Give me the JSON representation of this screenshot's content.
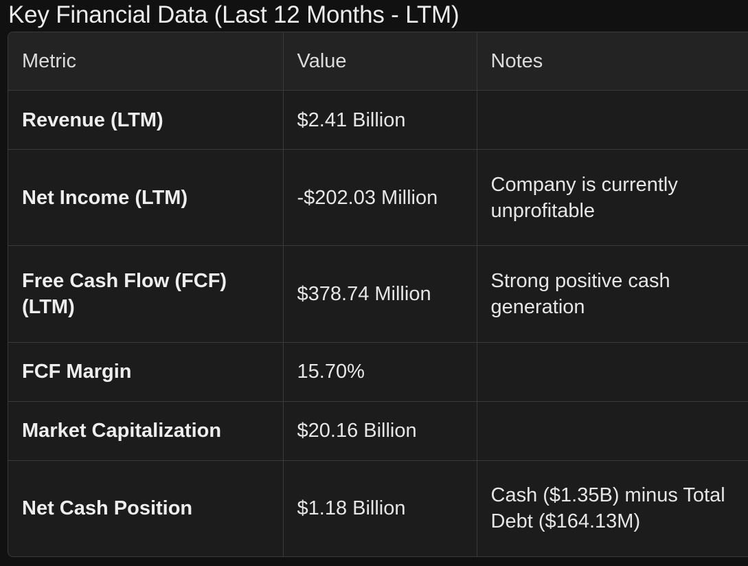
{
  "title": "Key Financial Data (Last 12 Months - LTM)",
  "table": {
    "headers": [
      "Metric",
      "Value",
      "Notes"
    ],
    "rows": [
      {
        "metric": "Revenue (LTM)",
        "value": "$2.41 Billion",
        "notes": ""
      },
      {
        "metric": "Net Income (LTM)",
        "value": "-$202.03 Million",
        "notes": "Company is currently unprofitable"
      },
      {
        "metric": "Free Cash Flow (FCF) (LTM)",
        "value": "$378.74 Million",
        "notes": "Strong positive cash generation"
      },
      {
        "metric": "FCF Margin",
        "value": "15.70%",
        "notes": ""
      },
      {
        "metric": "Market Capitalization",
        "value": "$20.16 Billion",
        "notes": ""
      },
      {
        "metric": "Net Cash Position",
        "value": "$1.18 Billion",
        "notes": "Cash ($1.35B) minus Total Debt ($164.13M)"
      }
    ]
  }
}
